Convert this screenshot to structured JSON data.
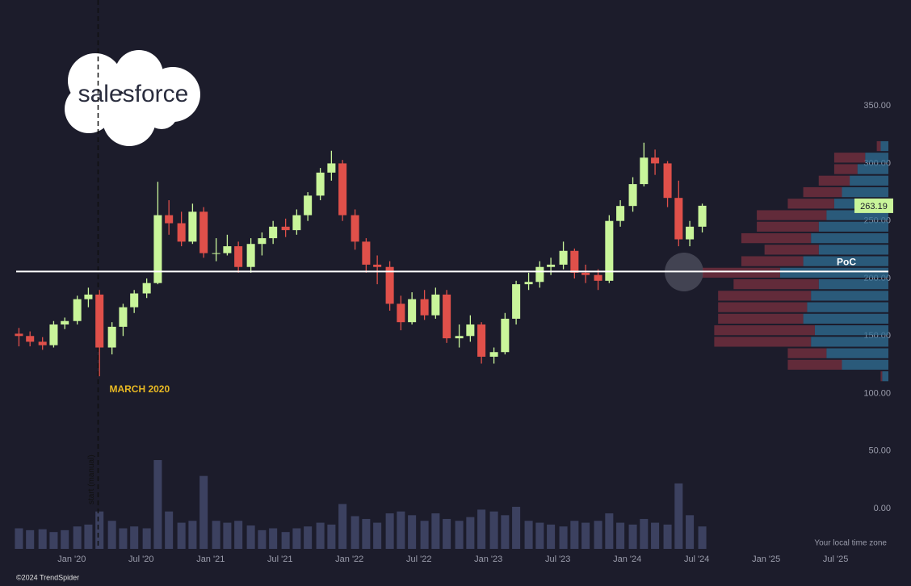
{
  "logo": "salesforce",
  "footer": "©2024 TrendSpider",
  "time_zone_note": "Your local time zone",
  "chart_data": {
    "type": "candlestick",
    "x": [
      2019.62,
      2019.7,
      2019.79,
      2019.87,
      2019.95,
      2020.04,
      2020.12,
      2020.2,
      2020.29,
      2020.37,
      2020.45,
      2020.54,
      2020.62,
      2020.7,
      2020.79,
      2020.87,
      2020.95,
      2021.04,
      2021.12,
      2021.2,
      2021.29,
      2021.37,
      2021.45,
      2021.54,
      2021.62,
      2021.7,
      2021.79,
      2021.87,
      2021.95,
      2022.04,
      2022.12,
      2022.2,
      2022.29,
      2022.37,
      2022.45,
      2022.54,
      2022.62,
      2022.7,
      2022.79,
      2022.87,
      2022.95,
      2023.04,
      2023.12,
      2023.2,
      2023.29,
      2023.37,
      2023.45,
      2023.54,
      2023.62,
      2023.7,
      2023.79,
      2023.87,
      2023.95,
      2024.04,
      2024.12,
      2024.2,
      2024.29,
      2024.37,
      2024.45,
      2024.54
    ],
    "open": [
      152,
      150,
      145,
      142,
      160,
      163,
      182,
      186,
      140,
      158,
      175,
      187,
      196,
      255,
      248,
      232,
      258,
      222,
      222,
      228,
      210,
      230,
      235,
      245,
      242,
      255,
      272,
      292,
      300,
      255,
      232,
      212,
      210,
      178,
      162,
      182,
      168,
      186,
      148,
      150,
      160,
      132,
      136,
      165,
      195,
      197,
      210,
      212,
      224,
      205,
      203,
      198,
      250,
      263,
      282,
      305,
      300,
      270,
      234,
      245
    ],
    "high": [
      157,
      154,
      149,
      163,
      166,
      185,
      192,
      190,
      162,
      178,
      190,
      200,
      284,
      268,
      258,
      265,
      262,
      235,
      238,
      232,
      235,
      240,
      250,
      252,
      260,
      275,
      296,
      311,
      303,
      260,
      235,
      220,
      215,
      185,
      188,
      190,
      192,
      190,
      160,
      168,
      162,
      140,
      170,
      198,
      205,
      215,
      218,
      232,
      226,
      212,
      208,
      255,
      268,
      288,
      318,
      312,
      302,
      285,
      250,
      265
    ],
    "low": [
      141,
      141,
      138,
      140,
      156,
      160,
      175,
      115,
      134,
      150,
      170,
      183,
      195,
      238,
      228,
      230,
      218,
      215,
      220,
      205,
      205,
      220,
      230,
      236,
      238,
      250,
      268,
      285,
      250,
      225,
      205,
      195,
      172,
      155,
      160,
      164,
      165,
      144,
      140,
      145,
      126,
      126,
      134,
      160,
      190,
      192,
      203,
      208,
      200,
      196,
      190,
      196,
      245,
      258,
      280,
      290,
      262,
      228,
      228,
      240
    ],
    "close": [
      150,
      145,
      142,
      160,
      163,
      182,
      186,
      140,
      158,
      175,
      187,
      196,
      255,
      248,
      232,
      258,
      222,
      222,
      228,
      210,
      230,
      235,
      245,
      242,
      255,
      272,
      292,
      300,
      255,
      232,
      212,
      210,
      178,
      162,
      182,
      168,
      186,
      148,
      150,
      160,
      132,
      136,
      165,
      195,
      197,
      210,
      212,
      224,
      205,
      203,
      198,
      250,
      263,
      282,
      305,
      300,
      270,
      234,
      245,
      263.19
    ],
    "volume": [
      22,
      20,
      21,
      18,
      20,
      24,
      26,
      40,
      30,
      22,
      24,
      22,
      95,
      40,
      28,
      30,
      78,
      30,
      28,
      30,
      25,
      20,
      22,
      18,
      22,
      24,
      28,
      26,
      48,
      35,
      32,
      28,
      38,
      40,
      36,
      30,
      38,
      32,
      30,
      34,
      42,
      40,
      36,
      45,
      30,
      28,
      26,
      24,
      30,
      28,
      30,
      38,
      28,
      26,
      32,
      28,
      26,
      70,
      36,
      24
    ],
    "up_color": "#c9f59a",
    "down_color": "#e0504a",
    "volume_color": "#3c4160",
    "volume_profile": {
      "levels": [
        110,
        120,
        130,
        140,
        150,
        160,
        170,
        180,
        190,
        200,
        210,
        220,
        230,
        240,
        250,
        260,
        270,
        280,
        290,
        300,
        310
      ],
      "buy": [
        8,
        60,
        80,
        100,
        95,
        110,
        105,
        100,
        90,
        140,
        110,
        90,
        100,
        90,
        80,
        70,
        60,
        50,
        40,
        30,
        10
      ],
      "sell": [
        2,
        70,
        50,
        125,
        130,
        110,
        115,
        120,
        110,
        100,
        80,
        70,
        90,
        80,
        90,
        60,
        50,
        40,
        30,
        40,
        5
      ],
      "buy_color": "#2f6f95",
      "sell_color": "#7a3040"
    },
    "poc": 206,
    "poc_label": "PoC",
    "annotations": [
      {
        "text": "MARCH 2020",
        "x": 2020.19
      }
    ],
    "vertical_note": "start (manual)",
    "xlim": [
      2019.6,
      2025.88
    ],
    "ylim": [
      -35,
      442
    ],
    "xticks": [
      {
        "value": 2020,
        "label": "Jan '20"
      },
      {
        "value": 2020.5,
        "label": "Jul '20"
      },
      {
        "value": 2021,
        "label": "Jan '21"
      },
      {
        "value": 2021.5,
        "label": "Jul '21"
      },
      {
        "value": 2022,
        "label": "Jan '22"
      },
      {
        "value": 2022.5,
        "label": "Jul '22"
      },
      {
        "value": 2023,
        "label": "Jan '23"
      },
      {
        "value": 2023.5,
        "label": "Jul '23"
      },
      {
        "value": 2024,
        "label": "Jan '24"
      },
      {
        "value": 2024.5,
        "label": "Jul '24"
      },
      {
        "value": 2025,
        "label": "Jan '25"
      },
      {
        "value": 2025.5,
        "label": "Jul '25"
      }
    ],
    "yticks": [
      {
        "value": 0,
        "label": "0.00"
      },
      {
        "value": 50,
        "label": "50.00"
      },
      {
        "value": 100,
        "label": "100.00"
      },
      {
        "value": 150,
        "label": "150.00"
      },
      {
        "value": 200,
        "label": "200.00"
      },
      {
        "value": 250,
        "label": "250.00"
      },
      {
        "value": 300,
        "label": "300.00"
      },
      {
        "value": 350,
        "label": "350.00"
      }
    ]
  }
}
